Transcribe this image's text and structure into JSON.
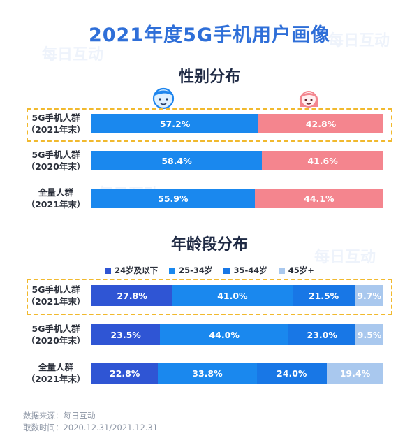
{
  "chart_data": [
    {
      "type": "bar",
      "orientation": "horizontal",
      "stacked": true,
      "title": "性别分布",
      "categories": [
        "5G手机人群\n（2021年末）",
        "5G手机人群\n（2020年末）",
        "全量人群\n（2021年末）"
      ],
      "series": [
        {
          "name": "",
          "values": [
            57.2,
            58.4,
            55.9
          ],
          "labels": [
            "57.2%",
            "58.4%",
            "55.9%"
          ],
          "color": "#1a88ee"
        },
        {
          "name": "",
          "values": [
            42.8,
            41.6,
            44.1
          ],
          "labels": [
            "42.8%",
            "41.6%",
            "44.1%"
          ],
          "color": "#f4858e"
        }
      ],
      "highlight_category": 0
    },
    {
      "type": "bar",
      "orientation": "horizontal",
      "stacked": true,
      "title": "年龄段分布",
      "categories": [
        "5G手机人群\n（2021年末）",
        "5G手机人群\n（2020年末）",
        "全量人群\n（2021年末）"
      ],
      "series": [
        {
          "name": "24岁及以下",
          "values": [
            27.8,
            23.5,
            22.8
          ],
          "labels": [
            "27.8%",
            "23.5%",
            "22.8%"
          ],
          "color": "#2f55d4"
        },
        {
          "name": "25-34岁",
          "values": [
            41.0,
            44.0,
            33.8
          ],
          "labels": [
            "41.0%",
            "44.0%",
            "33.8%"
          ],
          "color": "#1a88ee"
        },
        {
          "name": "35-44岁",
          "values": [
            21.5,
            23.0,
            24.0
          ],
          "labels": [
            "21.5%",
            "23.0%",
            "24.0%"
          ],
          "color": "#1877e6"
        },
        {
          "name": "45岁+",
          "values": [
            9.7,
            9.5,
            19.4
          ],
          "labels": [
            "9.7%",
            "9.5%",
            "19.4%"
          ],
          "color": "#a9c8ee"
        }
      ],
      "legend": "top",
      "highlight_category": 0
    }
  ],
  "main_title": "2021年度5G手机用户画像",
  "footnotes": [
    "数据来源：每日互动",
    "取数时间：2020.12.31/2021.12.31"
  ],
  "watermark": "每日互动",
  "icons": {
    "male": "male-avatar-icon",
    "female": "female-avatar-icon"
  }
}
